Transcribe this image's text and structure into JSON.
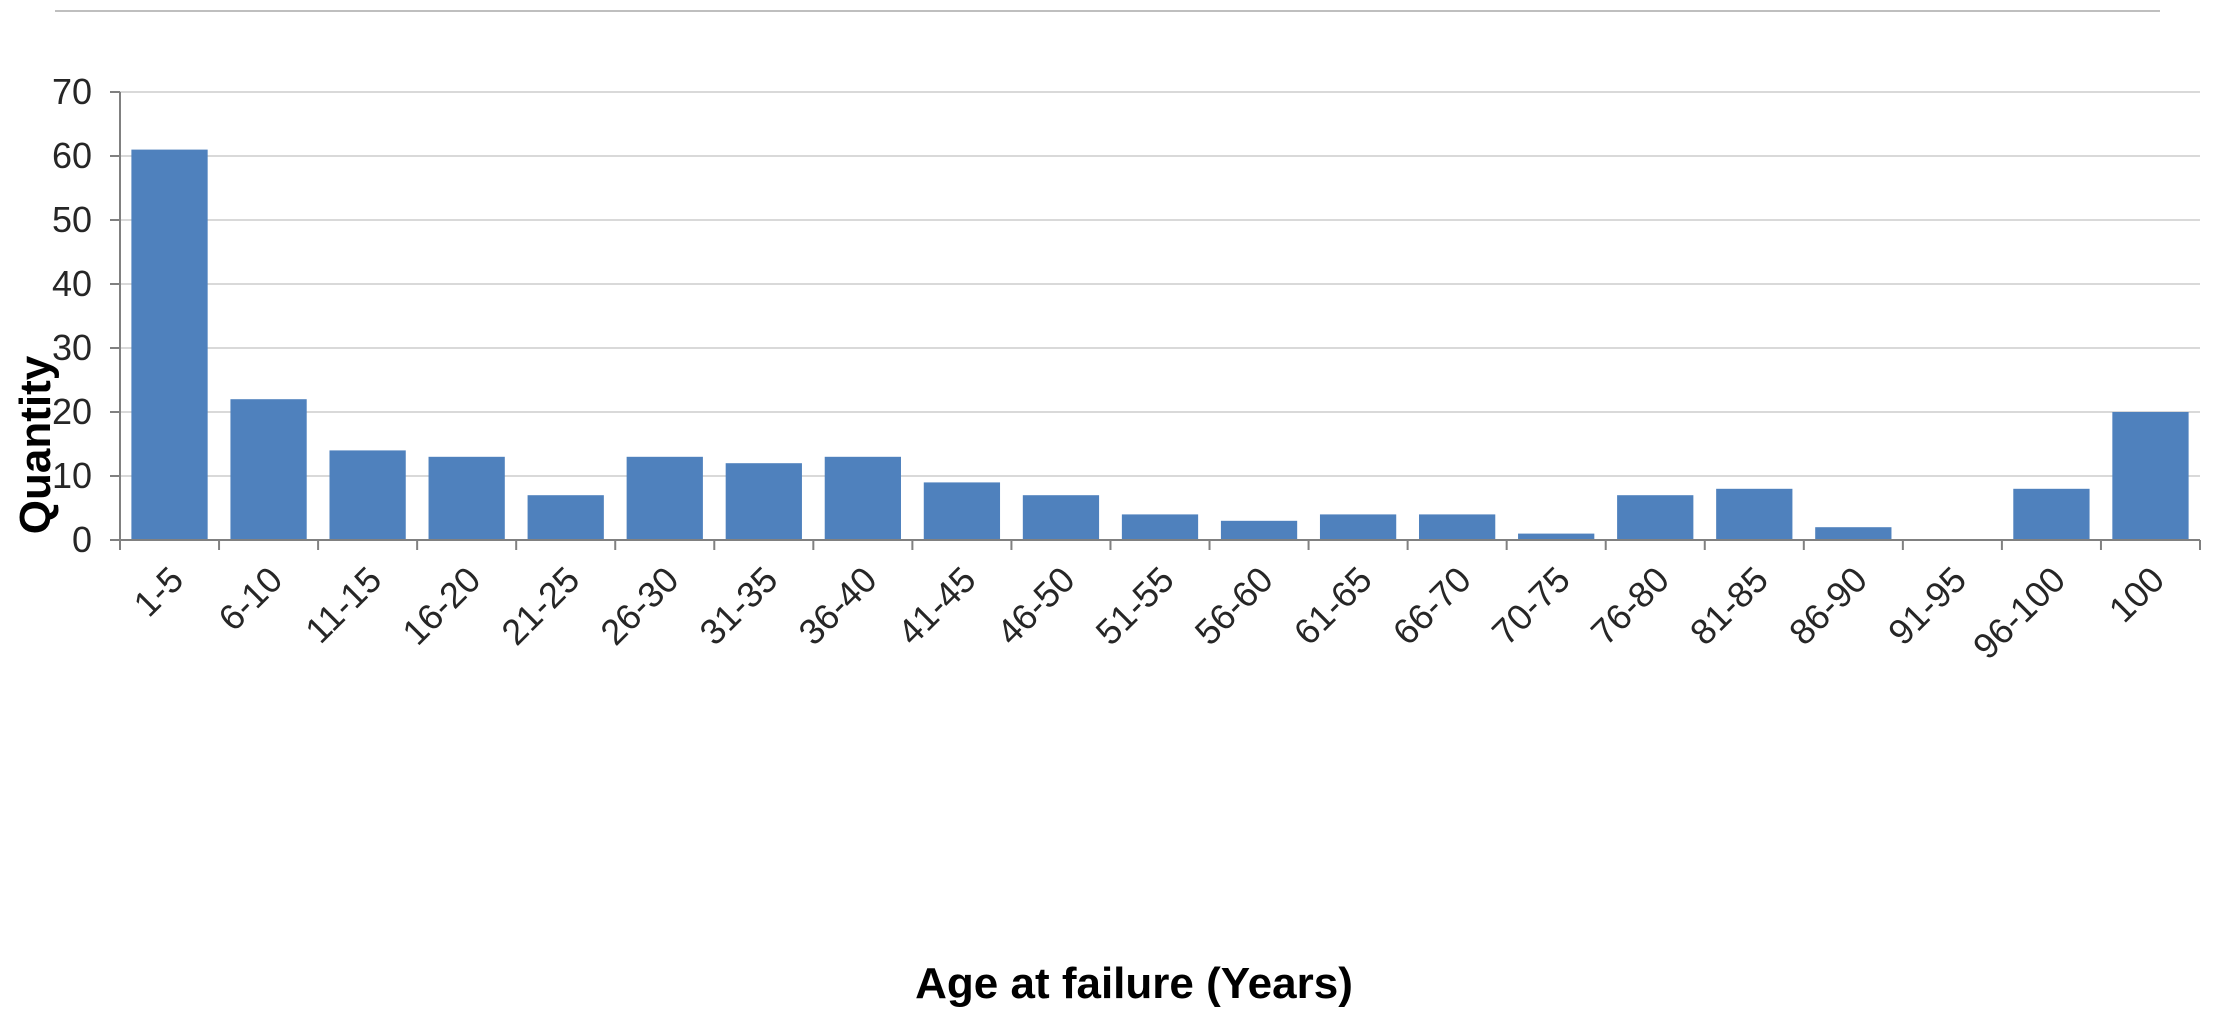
{
  "colors": {
    "bar": "#4f81bd",
    "grid": "#d9d9d9",
    "axis": "#808080",
    "rule": "#bfbfbf"
  },
  "chart_data": {
    "type": "bar",
    "title": "",
    "xlabel": "Age  at failure (Years)",
    "ylabel": "Quantity",
    "ylim": [
      0,
      70
    ],
    "yticks": [
      "0",
      "10",
      "20",
      "30",
      "40",
      "50",
      "60",
      "70"
    ],
    "grid": true,
    "categories": [
      "1-5",
      "6-10",
      "11-15",
      "16-20",
      "21-25",
      "26-30",
      "31-35",
      "36-40",
      "41-45",
      "46-50",
      "51-55",
      "56-60",
      "61-65",
      "66-70",
      "70-75",
      "76-80",
      "81-85",
      "86-90",
      "91-95",
      "96-100",
      "100"
    ],
    "values": [
      61,
      22,
      14,
      13,
      7,
      13,
      12,
      13,
      9,
      7,
      4,
      3,
      4,
      4,
      1,
      7,
      8,
      2,
      0,
      8,
      20
    ]
  }
}
